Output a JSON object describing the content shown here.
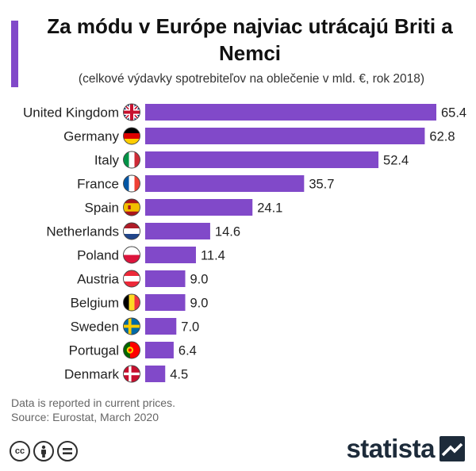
{
  "title": "Za módu v Európe najviac utrácajú Briti a Nemci",
  "subtitle": "(celkové výdavky spotrebiteľov na oblečenie v mld. €, rok 2018)",
  "notes": {
    "line1": "Data is reported in current prices.",
    "line2": "Source: Eurostat, March 2020"
  },
  "brand": "statista",
  "colors": {
    "accent": "#8149c9",
    "bar": "#8149c9",
    "brand": "#1d2b3a"
  },
  "chart_data": {
    "type": "bar",
    "orientation": "horizontal",
    "title": "Za módu v Európe najviac utrácajú Briti a Nemci",
    "subtitle": "(celkové výdavky spotrebiteľov na oblečenie v mld. €, rok 2018)",
    "categories": [
      "United Kingdom",
      "Germany",
      "Italy",
      "France",
      "Spain",
      "Netherlands",
      "Poland",
      "Austria",
      "Belgium",
      "Sweden",
      "Portugal",
      "Denmark"
    ],
    "values": [
      65.4,
      62.8,
      52.4,
      35.7,
      24.1,
      14.6,
      11.4,
      9.0,
      9.0,
      7.0,
      6.4,
      4.5
    ],
    "value_labels": [
      "65.4",
      "62.8",
      "52.4",
      "35.7",
      "24.1",
      "14.6",
      "11.4",
      "9.0",
      "9.0",
      "7.0",
      "6.4",
      "4.5"
    ],
    "flags": [
      "uk",
      "de",
      "it",
      "fr",
      "es",
      "nl",
      "pl",
      "at",
      "be",
      "se",
      "pt",
      "dk"
    ],
    "xlim": [
      0,
      65.4
    ],
    "grid": false,
    "legend": "none"
  }
}
